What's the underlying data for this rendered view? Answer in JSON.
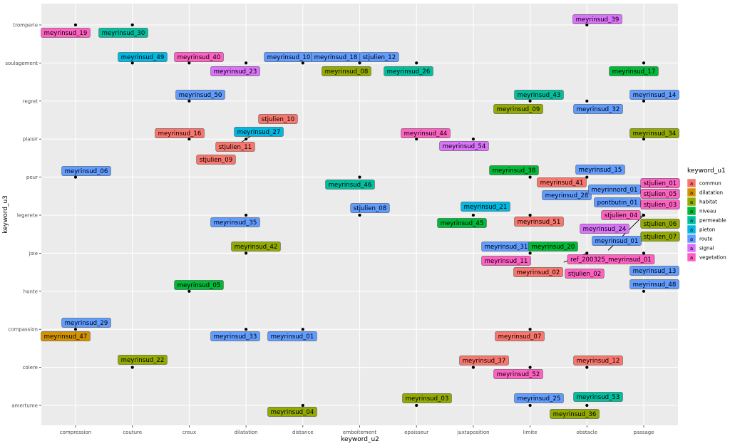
{
  "chart_data": {
    "type": "scatter",
    "xlabel": "keyword_u2",
    "ylabel": "keyword_u3",
    "x_categories": [
      "compression",
      "couture",
      "creux",
      "dilatation",
      "distance",
      "emboitement",
      "epaisseur",
      "juxtaposition",
      "limite",
      "obstacle",
      "passage"
    ],
    "y_categories": [
      "amertume",
      "colere",
      "compassion",
      "honte",
      "joie",
      "legerete",
      "peur",
      "plaisir",
      "regret",
      "soulagement",
      "tromperie"
    ],
    "grid": true,
    "legend": {
      "title": "keyword_u1",
      "placement": "right",
      "glyph": "a",
      "entries": [
        {
          "name": "commun",
          "color": "#F8766D"
        },
        {
          "name": "dilatation",
          "color": "#D39200"
        },
        {
          "name": "habitat",
          "color": "#93AA00"
        },
        {
          "name": "niveau",
          "color": "#00BA38"
        },
        {
          "name": "permeable",
          "color": "#00C19F"
        },
        {
          "name": "pieton",
          "color": "#00B9E3"
        },
        {
          "name": "route",
          "color": "#619CFF"
        },
        {
          "name": "signal",
          "color": "#DB72FB"
        },
        {
          "name": "vegetation",
          "color": "#FF61C3"
        }
      ]
    },
    "points": [
      {
        "label": "meyrinsud_19",
        "x": "compression",
        "y": "tromperie",
        "group": "vegetation"
      },
      {
        "label": "meyrinsud_30",
        "x": "couture",
        "y": "tromperie",
        "group": "permeable"
      },
      {
        "label": "meyrinsud_39",
        "x": "obstacle",
        "y": "tromperie",
        "group": "signal"
      },
      {
        "label": "meyrinsud_49",
        "x": "couture",
        "y": "soulagement",
        "group": "pieton"
      },
      {
        "label": "meyrinsud_40",
        "x": "creux",
        "y": "soulagement",
        "group": "vegetation"
      },
      {
        "label": "meyrinsud_23",
        "x": "dilatation",
        "y": "soulagement",
        "group": "signal"
      },
      {
        "label": "meyrinsud_10",
        "x": "distance",
        "y": "soulagement",
        "group": "route"
      },
      {
        "label": "meyrinsud_18",
        "x": "emboitement",
        "y": "soulagement",
        "group": "route"
      },
      {
        "label": "stjulien_12",
        "x": "emboitement",
        "y": "soulagement",
        "group": "route"
      },
      {
        "label": "meyrinsud_08",
        "x": "emboitement",
        "y": "soulagement",
        "group": "habitat"
      },
      {
        "label": "meyrinsud_26",
        "x": "epaisseur",
        "y": "soulagement",
        "group": "permeable"
      },
      {
        "label": "meyrinsud_17",
        "x": "passage",
        "y": "soulagement",
        "group": "niveau"
      },
      {
        "label": "meyrinsud_50",
        "x": "creux",
        "y": "regret",
        "group": "route"
      },
      {
        "label": "meyrinsud_43",
        "x": "limite",
        "y": "regret",
        "group": "permeable"
      },
      {
        "label": "meyrinsud_09",
        "x": "limite",
        "y": "regret",
        "group": "habitat"
      },
      {
        "label": "meyrinsud_32",
        "x": "obstacle",
        "y": "regret",
        "group": "route"
      },
      {
        "label": "meyrinsud_14",
        "x": "passage",
        "y": "regret",
        "group": "route"
      },
      {
        "label": "stjulien_10",
        "x": "dilatation",
        "y": "plaisir",
        "group": "commun"
      },
      {
        "label": "meyrinsud_16",
        "x": "creux",
        "y": "plaisir",
        "group": "commun"
      },
      {
        "label": "meyrinsud_27",
        "x": "dilatation",
        "y": "plaisir",
        "group": "pieton"
      },
      {
        "label": "stjulien_11",
        "x": "dilatation",
        "y": "plaisir",
        "group": "commun"
      },
      {
        "label": "stjulien_09",
        "x": "dilatation",
        "y": "plaisir",
        "group": "commun"
      },
      {
        "label": "meyrinsud_44",
        "x": "epaisseur",
        "y": "plaisir",
        "group": "vegetation"
      },
      {
        "label": "meyrinsud_54",
        "x": "juxtaposition",
        "y": "plaisir",
        "group": "signal"
      },
      {
        "label": "meyrinsud_34",
        "x": "passage",
        "y": "plaisir",
        "group": "habitat"
      },
      {
        "label": "meyrinsud_06",
        "x": "compression",
        "y": "peur",
        "group": "route"
      },
      {
        "label": "meyrinsud_46",
        "x": "emboitement",
        "y": "peur",
        "group": "permeable"
      },
      {
        "label": "meyrinsud_38",
        "x": "limite",
        "y": "peur",
        "group": "niveau"
      },
      {
        "label": "meyrinsud_15",
        "x": "obstacle",
        "y": "peur",
        "group": "route"
      },
      {
        "label": "meyrinsud_41",
        "x": "obstacle",
        "y": "peur",
        "group": "commun"
      },
      {
        "label": "meyrinsud_28",
        "x": "obstacle",
        "y": "peur",
        "group": "route"
      },
      {
        "label": "stjulien_01",
        "x": "passage",
        "y": "legerete",
        "group": "vegetation"
      },
      {
        "label": "meyrinnord_01",
        "x": "passage",
        "y": "legerete",
        "group": "route"
      },
      {
        "label": "stjulien_05",
        "x": "passage",
        "y": "legerete",
        "group": "vegetation"
      },
      {
        "label": "pontbutin_01",
        "x": "passage",
        "y": "legerete",
        "group": "route"
      },
      {
        "label": "stjulien_03",
        "x": "passage",
        "y": "legerete",
        "group": "vegetation"
      },
      {
        "label": "stjulien_04",
        "x": "passage",
        "y": "legerete",
        "group": "vegetation"
      },
      {
        "label": "stjulien_06",
        "x": "passage",
        "y": "legerete",
        "group": "habitat"
      },
      {
        "label": "meyrinsud_24",
        "x": "passage",
        "y": "legerete",
        "group": "signal"
      },
      {
        "label": "stjulien_07",
        "x": "passage",
        "y": "legerete",
        "group": "habitat"
      },
      {
        "label": "meyrinsud_35",
        "x": "dilatation",
        "y": "legerete",
        "group": "route"
      },
      {
        "label": "stjulien_08",
        "x": "emboitement",
        "y": "legerete",
        "group": "route"
      },
      {
        "label": "meyrinsud_21",
        "x": "juxtaposition",
        "y": "legerete",
        "group": "pieton"
      },
      {
        "label": "meyrinsud_45",
        "x": "juxtaposition",
        "y": "legerete",
        "group": "niveau"
      },
      {
        "label": "meyrinsud_51",
        "x": "limite",
        "y": "legerete",
        "group": "commun"
      },
      {
        "label": "meyrinsud_42",
        "x": "dilatation",
        "y": "joie",
        "group": "habitat"
      },
      {
        "label": "meyrinsud_31",
        "x": "limite",
        "y": "joie",
        "group": "route"
      },
      {
        "label": "meyrinsud_20",
        "x": "limite",
        "y": "joie",
        "group": "niveau"
      },
      {
        "label": "meyrinsud_11",
        "x": "limite",
        "y": "joie",
        "group": "vegetation"
      },
      {
        "label": "meyrinsud_02",
        "x": "obstacle",
        "y": "joie",
        "group": "commun"
      },
      {
        "label": "ref_200325_meyrinsud_01",
        "x": "obstacle",
        "y": "joie",
        "group": "vegetation"
      },
      {
        "label": "meyrinsud_01",
        "x": "passage",
        "y": "legerete",
        "group": "route"
      },
      {
        "label": "stjulien_02",
        "x": "passage",
        "y": "legerete",
        "group": "vegetation"
      },
      {
        "label": "meyrinsud_13",
        "x": "passage",
        "y": "joie",
        "group": "route"
      },
      {
        "label": "meyrinsud_05",
        "x": "creux",
        "y": "honte",
        "group": "niveau"
      },
      {
        "label": "meyrinsud_48",
        "x": "passage",
        "y": "honte",
        "group": "route"
      },
      {
        "label": "meyrinsud_29",
        "x": "compression",
        "y": "compassion",
        "group": "route"
      },
      {
        "label": "meyrinsud_47",
        "x": "compression",
        "y": "compassion",
        "group": "dilatation"
      },
      {
        "label": "meyrinsud_33",
        "x": "dilatation",
        "y": "compassion",
        "group": "route"
      },
      {
        "label": "meyrinsud_01",
        "x": "distance",
        "y": "compassion",
        "group": "route"
      },
      {
        "label": "meyrinsud_07",
        "x": "limite",
        "y": "compassion",
        "group": "commun"
      },
      {
        "label": "meyrinsud_22",
        "x": "couture",
        "y": "colere",
        "group": "habitat"
      },
      {
        "label": "meyrinsud_37",
        "x": "juxtaposition",
        "y": "colere",
        "group": "commun"
      },
      {
        "label": "meyrinsud_52",
        "x": "limite",
        "y": "colere",
        "group": "vegetation"
      },
      {
        "label": "meyrinsud_12",
        "x": "obstacle",
        "y": "colere",
        "group": "commun"
      },
      {
        "label": "meyrinsud_04",
        "x": "distance",
        "y": "amertume",
        "group": "habitat"
      },
      {
        "label": "meyrinsud_03",
        "x": "epaisseur",
        "y": "amertume",
        "group": "habitat"
      },
      {
        "label": "meyrinsud_25",
        "x": "limite",
        "y": "amertume",
        "group": "route"
      },
      {
        "label": "meyrinsud_53",
        "x": "obstacle",
        "y": "amertume",
        "group": "permeable"
      },
      {
        "label": "meyrinsud_36",
        "x": "obstacle",
        "y": "amertume",
        "group": "habitat"
      }
    ]
  }
}
